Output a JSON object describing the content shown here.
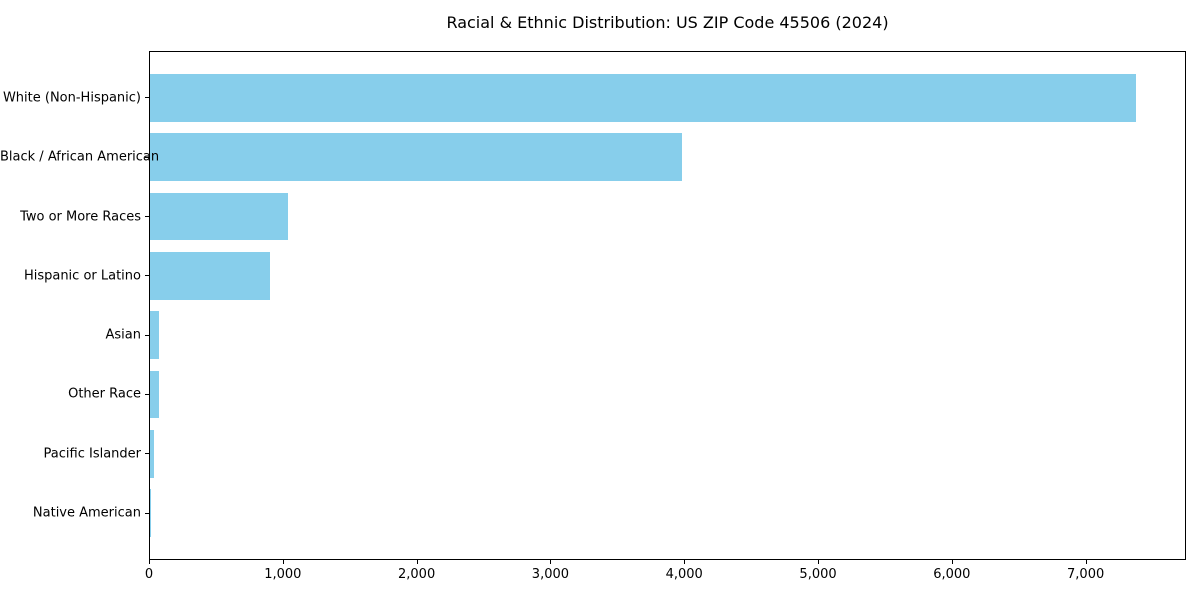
{
  "chart_data": {
    "type": "bar",
    "orientation": "horizontal",
    "title": "Racial & Ethnic Distribution: US ZIP Code 45506 (2024)",
    "categories": [
      "White (Non-Hispanic)",
      "Black / African American",
      "Two or More Races",
      "Hispanic or Latino",
      "Asian",
      "Other Race",
      "Pacific Islander",
      "Native American"
    ],
    "values": [
      7380,
      3980,
      1030,
      900,
      70,
      65,
      28,
      4
    ],
    "xlabel": "",
    "ylabel": "",
    "xlim": [
      0,
      7750
    ],
    "x_ticks": [
      0,
      1000,
      2000,
      3000,
      4000,
      5000,
      6000,
      7000
    ],
    "x_tick_labels": [
      "0",
      "1,000",
      "2,000",
      "3,000",
      "4,000",
      "5,000",
      "6,000",
      "7,000"
    ],
    "bar_color": "#87CEEB",
    "axis_color": "#000000",
    "background_color": "#ffffff",
    "grid": false
  }
}
